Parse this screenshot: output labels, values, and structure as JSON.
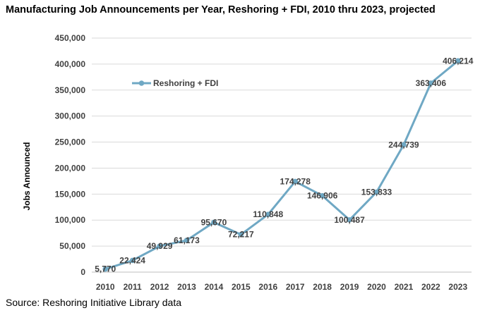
{
  "source": "Source: Reshoring Initiative Library data",
  "chart_data": {
    "type": "line",
    "title": "Manufacturing Job Announcements per Year, Reshoring + FDI, 2010 thru 2023, projected",
    "ylabel": "Jobs Announced",
    "xlabel": "",
    "categories": [
      "2010",
      "2011",
      "2012",
      "2013",
      "2014",
      "2015",
      "2016",
      "2017",
      "2018",
      "2019",
      "2020",
      "2021",
      "2022",
      "2023"
    ],
    "series": [
      {
        "name": "Reshoring + FDI",
        "values": [
          5770,
          22424,
          49929,
          61173,
          95670,
          72217,
          110848,
          174278,
          146906,
          100487,
          153833,
          244739,
          363406,
          406214
        ],
        "labels": [
          "5,770",
          "22,424",
          "49,929",
          "61,173",
          "95,670",
          "72,217",
          "110,848",
          "174,278",
          "146,906",
          "100,487",
          "153,833",
          "244,739",
          "363,406",
          "406,214"
        ],
        "color": "#6fa8c4"
      }
    ],
    "ylim": [
      0,
      450000
    ],
    "yticks": [
      0,
      50000,
      100000,
      150000,
      200000,
      250000,
      300000,
      350000,
      400000,
      450000
    ],
    "ytick_labels": [
      "0",
      "50,000",
      "100,000",
      "150,000",
      "200,000",
      "250,000",
      "300,000",
      "350,000",
      "400,000",
      "450,000"
    ],
    "grid": true,
    "legend": "top-left"
  }
}
